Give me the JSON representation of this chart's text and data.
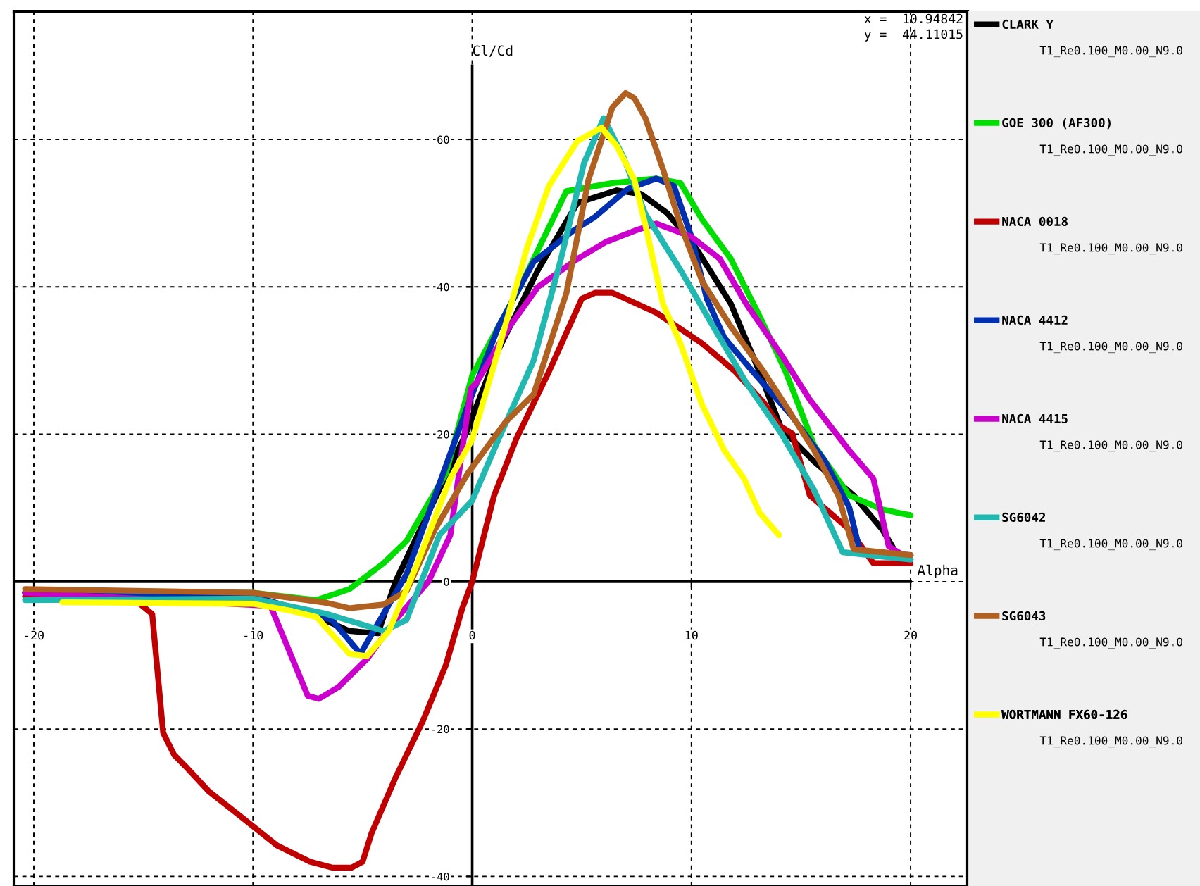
{
  "chart_data": {
    "type": "line",
    "xlabel": "Alpha",
    "ylabel": "Cl/Cd",
    "xlim": [
      -20.9,
      22.6
    ],
    "ylim": [
      -41.3,
      77.4
    ],
    "xticks": [
      -20,
      -10,
      0,
      10,
      20
    ],
    "yticks": [
      -40,
      -20,
      0,
      20,
      40,
      60
    ],
    "grid": true,
    "legend": "right",
    "line_style": "solid",
    "annotations": [
      "x =  10.94842",
      "y =  44.11015",
      "T1_Re0.100_M0.00_N9.0",
      "T1_Re0.100_M0.00_N9.0",
      "T1_Re0.100_M0.00_N9.0",
      "T1_Re0.100_M0.00_N9.0",
      "T1_Re0.100_M0.00_N9.0",
      "T1_Re0.100_M0.00_N9.0",
      "T1_Re0.100_M0.00_N9.0",
      "T1_Re0.100_M0.00_N9.0"
    ],
    "series": [
      {
        "name": "CLARK Y",
        "color": "#000000",
        "x": [
          -20.4,
          -10,
          -7.65,
          -5.6,
          -4.3,
          -3.5,
          -0.3,
          1.2,
          3.0,
          4.8,
          6.6,
          7.7,
          8.9,
          10.2,
          11.8,
          13.1,
          14.1,
          15.6,
          17.4,
          18.7,
          19.4,
          20
        ],
        "values": [
          -1.5,
          -2,
          -4,
          -6.7,
          -7,
          0,
          20,
          31.5,
          42.3,
          51.4,
          53.1,
          52.6,
          50,
          45.3,
          37.7,
          28.5,
          20.8,
          16.3,
          11.7,
          7.1,
          3.6,
          3.6
        ]
      },
      {
        "name": "GOE 300 (AF300)",
        "color": "#00dd00",
        "x": [
          -20.4,
          -10,
          -7.1,
          -5.6,
          -4.05,
          -3.0,
          -1.2,
          0,
          2.3,
          4.3,
          6.4,
          8.4,
          9.5,
          10.5,
          11.8,
          13.1,
          14.3,
          15.6,
          17.2,
          18.7,
          20
        ],
        "values": [
          -1.5,
          -1.5,
          -2.5,
          -1,
          2.5,
          5.5,
          14.7,
          28,
          40.7,
          53,
          54.1,
          54.7,
          54.1,
          49.1,
          43.8,
          36.1,
          28.5,
          18.5,
          11.7,
          9.8,
          9
        ]
      },
      {
        "name": "NACA 0018",
        "color": "#c00000",
        "x": [
          -20.4,
          -15.2,
          -14.6,
          -14.1,
          -13.6,
          -13.1,
          -12.0,
          -10.5,
          -8.9,
          -7.4,
          -6.4,
          -5.5,
          -5.0,
          -4.6,
          -3.5,
          -2.25,
          -1.2,
          -0.45,
          0,
          1.0,
          2.0,
          3.5,
          5.0,
          5.6,
          6.4,
          8.4,
          10.5,
          12.0,
          13.3,
          14.0,
          14.6,
          15.4,
          17.2,
          18.3,
          20
        ],
        "values": [
          -2,
          -2.9,
          -4.4,
          -20.5,
          -23.5,
          -25,
          -28.5,
          -32,
          -35.8,
          -38,
          -38.8,
          -38.8,
          -38,
          -34.2,
          -26.6,
          -18.9,
          -11.3,
          -3.6,
          0,
          11.7,
          19.3,
          28.5,
          38.4,
          39.2,
          39.2,
          36.5,
          32.3,
          28.5,
          24.3,
          21.2,
          20.1,
          11.7,
          7.1,
          2.5,
          2.5
        ]
      },
      {
        "name": "NACA 4412",
        "color": "#0030b0",
        "x": [
          -20.4,
          -10,
          -6.4,
          -5.1,
          -3.0,
          -0.2,
          1.2,
          2.8,
          4.6,
          5.6,
          7.1,
          8.4,
          9.2,
          10.0,
          10.7,
          11.5,
          12.8,
          14.6,
          16.1,
          17.2,
          17.7,
          20
        ],
        "values": [
          -1.5,
          -2,
          -5.2,
          -9.8,
          1,
          23.9,
          34.6,
          43.4,
          47.6,
          49.5,
          53.3,
          54.7,
          53.7,
          46.8,
          38.4,
          33.1,
          28.5,
          22.4,
          16.3,
          10.1,
          4,
          3.6
        ]
      },
      {
        "name": "NACA 4415",
        "color": "#cc00cc",
        "x": [
          -20.4,
          -9.2,
          -7.5,
          -7.0,
          -6.1,
          -4.8,
          -3.5,
          -2.0,
          -1.0,
          -0.06,
          0.2,
          1.7,
          3.0,
          4.8,
          6.1,
          7.4,
          8.4,
          10,
          11.3,
          12.5,
          14.1,
          15.4,
          17.2,
          18.3,
          19.0,
          20
        ],
        "values": [
          -1.5,
          -3.3,
          -15.5,
          -15.9,
          -14.3,
          -10.5,
          -5.2,
          0,
          6.3,
          26.2,
          27,
          34.6,
          40,
          43.8,
          46.1,
          47.6,
          48.6,
          46.8,
          43.8,
          37.7,
          30.8,
          24.7,
          17.8,
          14,
          4.8,
          3
        ]
      },
      {
        "name": "SG6042",
        "color": "#20b8b0",
        "x": [
          -20.4,
          -10,
          -6.6,
          -4.05,
          -3.0,
          -1.5,
          0,
          1.2,
          2.8,
          4.05,
          5.1,
          6.0,
          6.9,
          7.9,
          9.5,
          11.0,
          12.5,
          14.1,
          15.6,
          16.9,
          20
        ],
        "values": [
          -2.5,
          -2.3,
          -4.4,
          -6.7,
          -5.2,
          6.3,
          11,
          19.3,
          30,
          43.8,
          56.8,
          62.9,
          57.6,
          49.9,
          42.3,
          34.6,
          27,
          20.1,
          12.4,
          4,
          3
        ]
      },
      {
        "name": "SG6043",
        "color": "#b06020",
        "x": [
          -20.4,
          -10,
          -6.6,
          -5.6,
          -4.05,
          -3.0,
          -1.7,
          -0.2,
          1.5,
          2.8,
          4.3,
          5.3,
          6.4,
          7.0,
          7.4,
          7.9,
          8.7,
          9.5,
          10.5,
          11.8,
          13.3,
          14.3,
          15.6,
          16.7,
          17.4,
          20
        ],
        "values": [
          -1,
          -1.5,
          -2.9,
          -3.6,
          -3.1,
          -1.3,
          7.1,
          14.7,
          21.6,
          25.4,
          39.2,
          54.5,
          64.4,
          66.3,
          65.6,
          62.9,
          56,
          48.4,
          40.7,
          34.6,
          28.5,
          23.9,
          17.8,
          11.7,
          4.4,
          3.6
        ]
      },
      {
        "name": "WORTMANN FX60-126",
        "color": "#ffff00",
        "x": [
          -18.7,
          -10,
          -8.2,
          -7.1,
          -5.6,
          -4.8,
          -3.8,
          -2.5,
          -1.0,
          0,
          1.2,
          2.5,
          3.5,
          4.8,
          5.9,
          6.6,
          7.4,
          7.9,
          8.7,
          9.5,
          10.5,
          11.5,
          12.4,
          13.1,
          14.0
        ],
        "values": [
          -2.8,
          -3,
          -4,
          -4.8,
          -9.8,
          -10.1,
          -6.7,
          2.5,
          14,
          19.3,
          31.5,
          45.3,
          53.7,
          59.8,
          61.6,
          59.1,
          54.5,
          48.4,
          37.7,
          32.3,
          23.9,
          17.8,
          14,
          9.4,
          6.3
        ]
      }
    ]
  }
}
